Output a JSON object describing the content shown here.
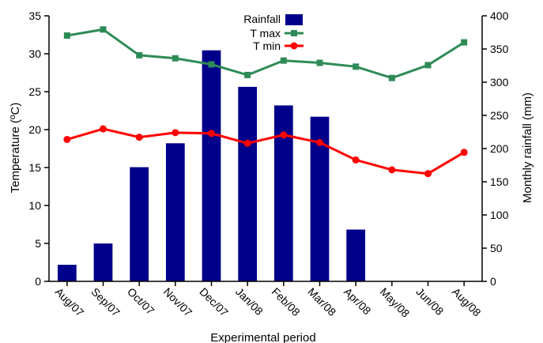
{
  "colors": {
    "rainfall": "#00008B",
    "tmax": "#2E8B57",
    "tmin": "#FF0000",
    "axis": "#000000"
  },
  "chart_data": {
    "type": "bar",
    "categories": [
      "Aug/07",
      "Sep/07",
      "Oct/07",
      "Nov/07",
      "Dec/07",
      "Jan/08",
      "Feb/08",
      "Mar/08",
      "Apr/08",
      "May/08",
      "Jun/08",
      "Aug/08"
    ],
    "xlabel": "Experimental period",
    "ylabel_left": "Temperature (ºC)",
    "ylabel_right": "Monthly rainfall (mm)",
    "ylim_left": [
      0,
      35
    ],
    "ylim_right": [
      0,
      400
    ],
    "yticks_left": [
      0,
      5,
      10,
      15,
      20,
      25,
      30,
      35
    ],
    "yticks_right": [
      0,
      50,
      100,
      150,
      200,
      250,
      300,
      350,
      400
    ],
    "legend_position": "top-center",
    "grid": false,
    "series": [
      {
        "name": "Rainfall",
        "type": "bar",
        "axis": "right",
        "values": [
          25,
          57,
          172,
          208,
          348,
          293,
          265,
          248,
          78,
          0,
          0,
          0
        ]
      },
      {
        "name": "T max",
        "type": "line",
        "axis": "left",
        "marker": "square",
        "values": [
          32.4,
          33.2,
          29.8,
          29.4,
          28.6,
          27.2,
          29.1,
          28.8,
          28.3,
          26.8,
          28.5,
          31.5
        ]
      },
      {
        "name": "T min",
        "type": "line",
        "axis": "left",
        "marker": "circle",
        "values": [
          18.7,
          20.1,
          19.0,
          19.6,
          19.5,
          18.2,
          19.3,
          18.3,
          16.0,
          14.7,
          14.2,
          17.0
        ]
      }
    ]
  }
}
